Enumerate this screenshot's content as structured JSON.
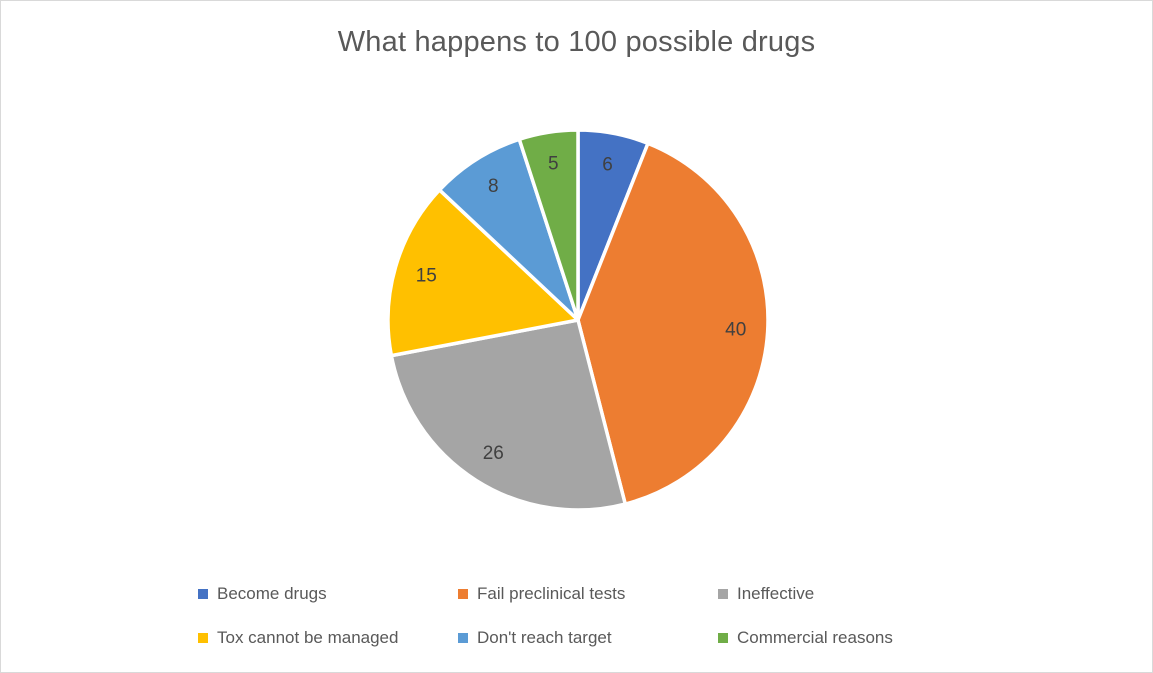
{
  "frame": {
    "background": "#FFFFFF",
    "border_color": "#D9D9D9"
  },
  "chart_data": {
    "type": "pie",
    "title": "What happens to 100 possible drugs",
    "categories": [
      "Become drugs",
      "Fail preclinical tests",
      "Ineffective",
      "Tox cannot be managed",
      "Don't reach target",
      "Commercial reasons"
    ],
    "values": [
      6,
      40,
      26,
      15,
      8,
      5
    ],
    "colors": [
      "#4472C4",
      "#ED7D31",
      "#A5A5A5",
      "#FFC000",
      "#5B9BD5",
      "#70AD47"
    ],
    "total": 100,
    "start_angle_deg": 0,
    "direction": "clockwise",
    "slice_border_color": "#FFFFFF",
    "slice_border_width": 3.5,
    "data_labels": "values",
    "data_label_color": "#404040",
    "title_color": "#595959",
    "legend": {
      "position": "bottom",
      "columns": 3,
      "rows": 2,
      "text_color": "#595959"
    }
  }
}
